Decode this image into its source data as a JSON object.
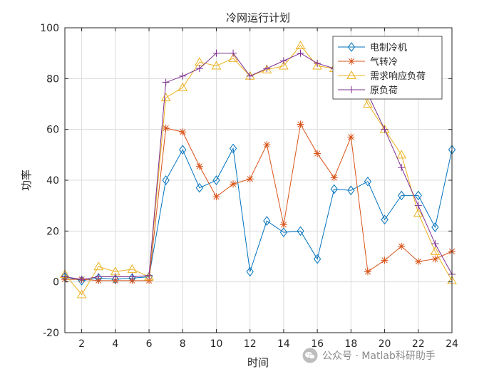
{
  "chart_data": {
    "type": "line",
    "title": "冷网运行计划",
    "xlabel": "时间",
    "ylabel": "功率",
    "xlim": [
      1,
      24
    ],
    "ylim": [
      -20,
      100
    ],
    "xticks": [
      2,
      4,
      6,
      8,
      10,
      12,
      14,
      16,
      18,
      20,
      22,
      24
    ],
    "yticks": [
      -20,
      0,
      20,
      40,
      60,
      80,
      100
    ],
    "grid": true,
    "legend_position": "top-right",
    "x": [
      1,
      2,
      3,
      4,
      5,
      6,
      7,
      8,
      9,
      10,
      11,
      12,
      13,
      14,
      15,
      16,
      17,
      18,
      19,
      20,
      21,
      22,
      23,
      24
    ],
    "series": [
      {
        "name": "电制冷机",
        "color": "#0072BD",
        "marker": "diamond",
        "values": [
          2,
          0.5,
          1.5,
          1,
          1.5,
          2,
          40,
          52,
          37,
          40,
          52.5,
          4,
          24,
          19.5,
          20,
          9,
          36.5,
          36,
          39.5,
          24.5,
          34,
          34,
          21.5,
          52
        ]
      },
      {
        "name": "气转冷",
        "color": "#D95319",
        "marker": "asterisk",
        "values": [
          1,
          1,
          0.5,
          0.5,
          0.5,
          0.5,
          60.5,
          59,
          45.5,
          33.5,
          38.5,
          40.5,
          54,
          22.5,
          62,
          50.5,
          41,
          57,
          4,
          8.5,
          14,
          8,
          9,
          12
        ]
      },
      {
        "name": "需求响应负荷",
        "color": "#EDB120",
        "marker": "triangle",
        "values": [
          3,
          -5,
          6,
          4,
          5,
          2,
          72.5,
          76.5,
          86.5,
          85,
          88,
          81,
          83.5,
          85,
          93,
          85,
          84,
          85,
          70,
          60,
          50,
          27,
          12,
          0.5
        ]
      },
      {
        "name": "原负荷",
        "color": "#7E2F8E",
        "marker": "plus",
        "values": [
          2,
          1,
          2,
          2,
          2,
          2.5,
          78.5,
          81,
          84,
          90,
          90,
          81,
          84,
          87,
          90,
          86,
          84,
          85,
          74,
          60,
          45,
          30,
          15,
          3
        ]
      }
    ]
  },
  "watermark": {
    "text": "公众号 · Matlab科研助手",
    "icon": "wechat-icon"
  }
}
